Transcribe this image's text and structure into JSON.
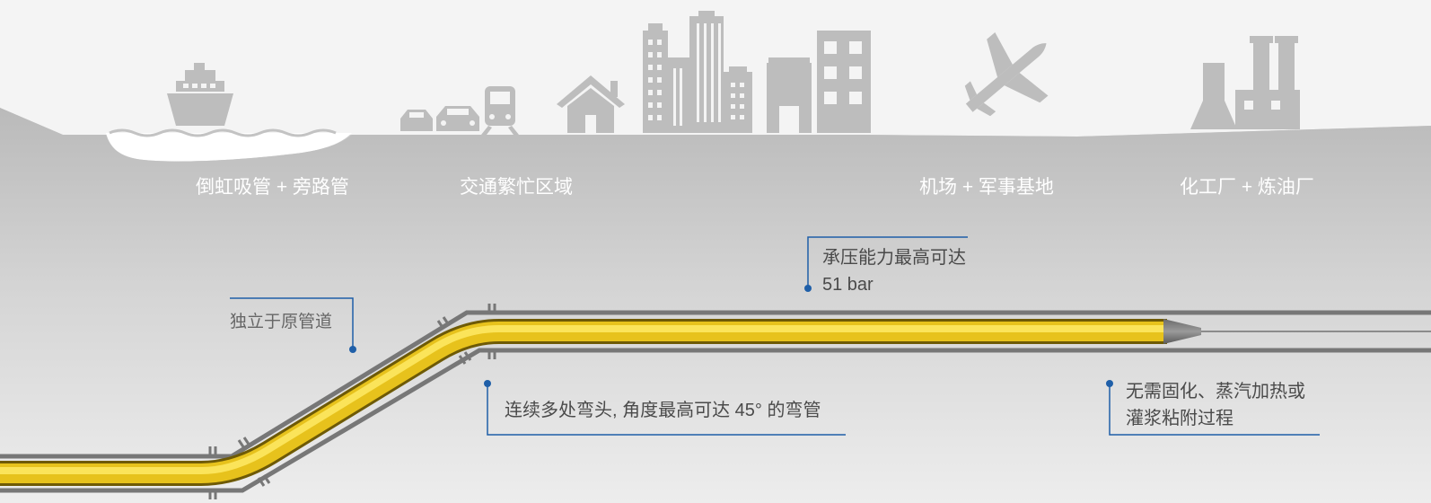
{
  "top_labels": {
    "siphon": "倒虹吸管 + 旁路管",
    "traffic": "交通繁忙区域",
    "airport": "机场 + 军事基地",
    "chemical": "化工厂 + 炼油厂"
  },
  "callouts": {
    "independent": "独立于原管道",
    "pressure_line1": "承压能力最高可达",
    "pressure_line2": "51 bar",
    "bends": "连续多处弯头, 角度最高可达 45° 的弯管",
    "no_cure_line1": "无需固化、蒸汽加热或",
    "no_cure_line2": "灌浆粘附过程"
  },
  "icons": [
    "ship-icon",
    "car-icon",
    "train-icon",
    "house-icon",
    "city-buildings-icon",
    "factory-building-icon",
    "airplane-icon",
    "chemical-plant-icon"
  ],
  "colors": {
    "ground": "#c3c3c3",
    "icon": "#bdbdbd",
    "host_pipe": "#777777",
    "liner_yellow": "#f2cf25",
    "callout_blue": "#1f5fa8",
    "text": "#4a4a4a"
  }
}
